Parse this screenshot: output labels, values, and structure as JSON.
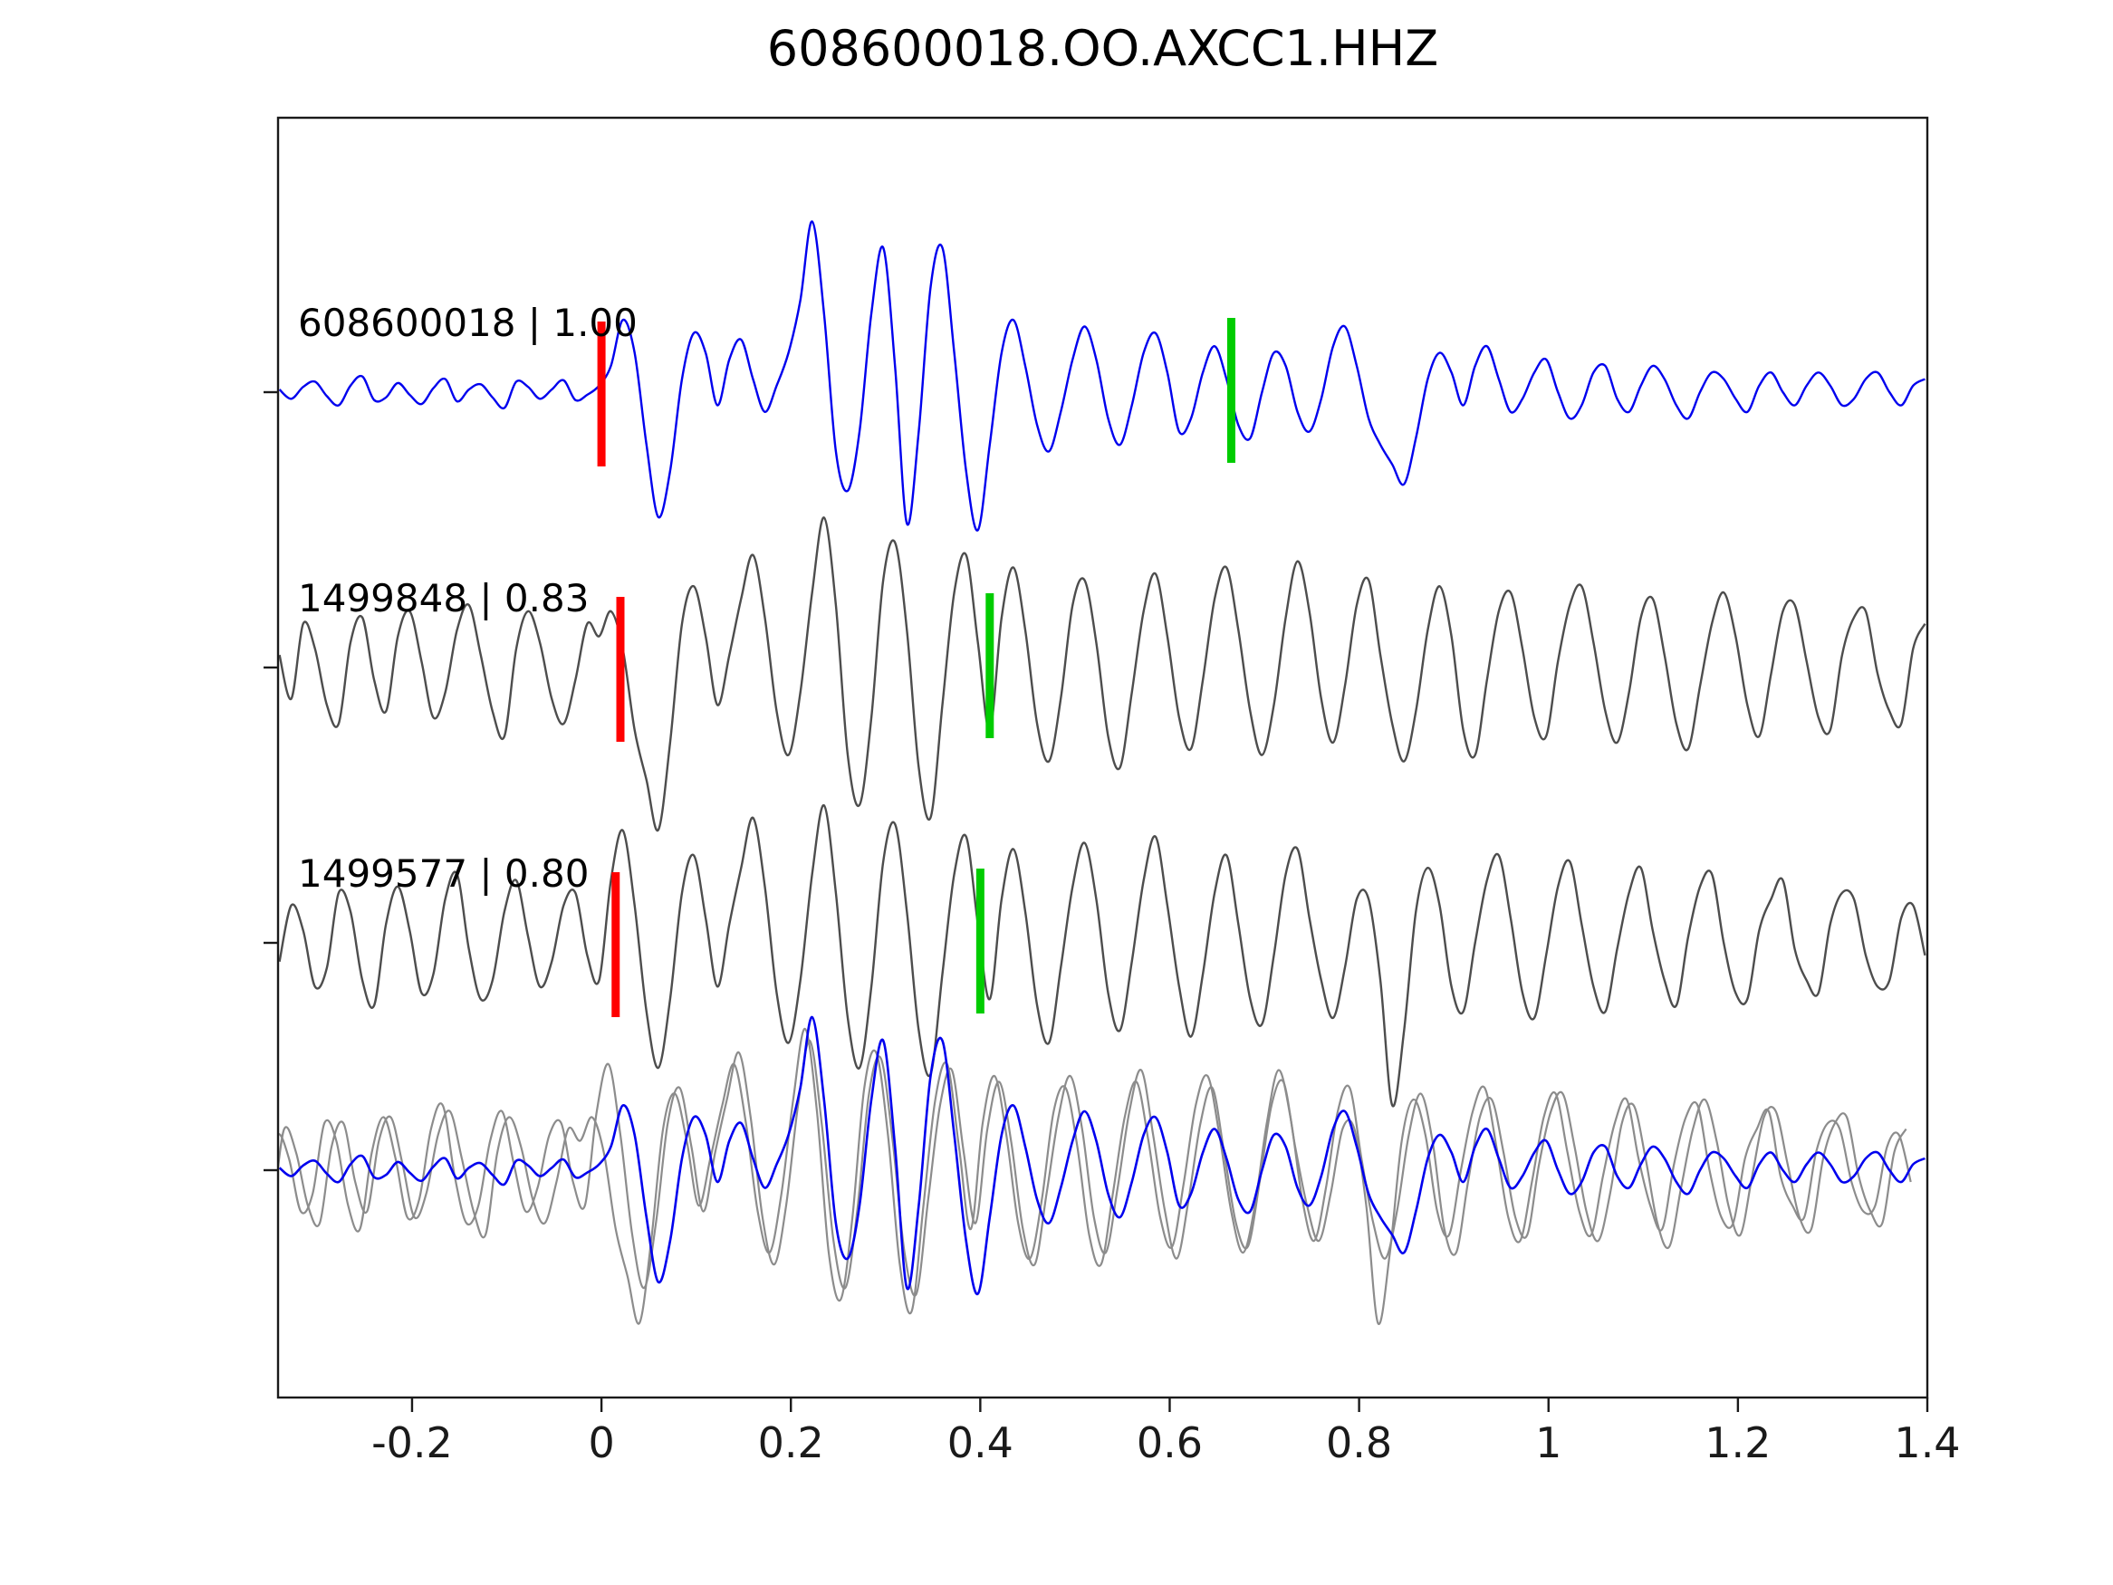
{
  "title": "608600018.OO.AXCC1.HHZ",
  "colors": {
    "trace_blue": "#0000ee",
    "trace_gray": "#4d4d4d",
    "overlay_gray": "#8c8c8c",
    "pick_red": "#ff0000",
    "pick_green": "#00cc00",
    "axis": "#1a1a1a",
    "label_text": "#000000"
  },
  "chart_data": {
    "type": "line",
    "title": "608600018.OO.AXCC1.HHZ",
    "xlabel": "",
    "ylabel": "",
    "xlim": [
      -0.3415,
      1.4
    ],
    "xticks": [
      -0.2,
      0,
      0.2,
      0.4,
      0.6,
      0.8,
      1,
      1.2,
      1.4
    ],
    "xtick_labels": [
      "-0.2",
      "0",
      "0.2",
      "0.4",
      "0.6",
      "0.8",
      "1",
      "1.2",
      "1.4"
    ],
    "grid": false,
    "legend": "none",
    "t0": -0.34,
    "dt": 0.0125,
    "series": [
      {
        "name": "608600018",
        "label": "608600018 | 1.00",
        "correlation": 1.0,
        "color": "blue",
        "row": 0,
        "red_pick": 0.0,
        "green_pick": 0.665,
        "values": [
          0.02,
          -0.05,
          0.04,
          0.08,
          -0.03,
          -0.1,
          0.05,
          0.12,
          -0.06,
          -0.04,
          0.07,
          -0.02,
          -0.09,
          0.03,
          0.1,
          -0.07,
          0.02,
          0.06,
          -0.04,
          -0.12,
          0.08,
          0.04,
          -0.05,
          0.02,
          0.09,
          -0.06,
          -0.02,
          0.05,
          0.2,
          0.55,
          0.3,
          -0.4,
          -0.95,
          -0.6,
          0.1,
          0.45,
          0.3,
          -0.1,
          0.25,
          0.4,
          0.1,
          -0.15,
          0.05,
          0.3,
          0.7,
          1.3,
          0.6,
          -0.45,
          -0.75,
          -0.3,
          0.6,
          1.1,
          0.2,
          -1.0,
          -0.3,
          0.8,
          1.1,
          0.3,
          -0.6,
          -1.05,
          -0.4,
          0.3,
          0.55,
          0.2,
          -0.25,
          -0.45,
          -0.15,
          0.25,
          0.5,
          0.25,
          -0.2,
          -0.4,
          -0.1,
          0.3,
          0.45,
          0.15,
          -0.3,
          -0.2,
          0.15,
          0.35,
          0.1,
          -0.25,
          -0.35,
          0.0,
          0.3,
          0.2,
          -0.15,
          -0.3,
          -0.05,
          0.35,
          0.5,
          0.2,
          -0.2,
          -0.4,
          -0.55,
          -0.7,
          -0.35,
          0.1,
          0.3,
          0.15,
          -0.1,
          0.2,
          0.35,
          0.1,
          -0.15,
          -0.05,
          0.15,
          0.25,
          0.0,
          -0.2,
          -0.1,
          0.15,
          0.2,
          -0.05,
          -0.15,
          0.05,
          0.2,
          0.1,
          -0.1,
          -0.2,
          0.0,
          0.15,
          0.1,
          -0.05,
          -0.15,
          0.05,
          0.15,
          0.0,
          -0.1,
          0.05,
          0.15,
          0.05,
          -0.1,
          -0.05,
          0.1,
          0.15,
          0.0,
          -0.1,
          0.05,
          0.1
        ]
      },
      {
        "name": "1499848",
        "label": "1499848 | 0.83",
        "correlation": 0.83,
        "color": "gray",
        "row": 1,
        "red_pick": 0.02,
        "green_pick": 0.41,
        "values": [
          0.1,
          -0.25,
          0.35,
          0.15,
          -0.3,
          -0.45,
          0.2,
          0.4,
          -0.1,
          -0.35,
          0.25,
          0.45,
          0.05,
          -0.4,
          -0.2,
          0.3,
          0.5,
          0.1,
          -0.35,
          -0.55,
          0.15,
          0.45,
          0.2,
          -0.25,
          -0.45,
          -0.1,
          0.35,
          0.25,
          0.45,
          0.15,
          -0.5,
          -0.9,
          -1.3,
          -0.6,
          0.35,
          0.65,
          0.25,
          -0.3,
          0.1,
          0.55,
          0.9,
          0.4,
          -0.35,
          -0.7,
          -0.2,
          0.6,
          1.2,
          0.5,
          -0.7,
          -1.1,
          -0.4,
          0.7,
          1.0,
          0.3,
          -0.8,
          -1.2,
          -0.3,
          0.6,
          0.9,
          0.2,
          -0.5,
          0.4,
          0.8,
          0.3,
          -0.45,
          -0.75,
          -0.25,
          0.5,
          0.7,
          0.2,
          -0.55,
          -0.8,
          -0.2,
          0.45,
          0.75,
          0.25,
          -0.4,
          -0.65,
          -0.1,
          0.55,
          0.8,
          0.3,
          -0.35,
          -0.7,
          -0.3,
          0.4,
          0.85,
          0.45,
          -0.25,
          -0.6,
          -0.15,
          0.5,
          0.7,
          0.1,
          -0.45,
          -0.75,
          -0.35,
          0.3,
          0.65,
          0.25,
          -0.5,
          -0.7,
          -0.1,
          0.45,
          0.6,
          0.15,
          -0.4,
          -0.55,
          0.05,
          0.5,
          0.65,
          0.2,
          -0.35,
          -0.6,
          -0.2,
          0.4,
          0.55,
          0.1,
          -0.45,
          -0.65,
          -0.15,
          0.35,
          0.6,
          0.25,
          -0.3,
          -0.55,
          -0.05,
          0.45,
          0.5,
          0.05,
          -0.4,
          -0.5,
          0.1,
          0.4,
          0.45,
          -0.05,
          -0.35,
          -0.45,
          0.15,
          0.35
        ]
      },
      {
        "name": "1499577",
        "label": "1499577 | 0.80",
        "correlation": 0.8,
        "color": "gray",
        "row": 2,
        "red_pick": 0.015,
        "green_pick": 0.4,
        "values": [
          -0.15,
          0.3,
          0.1,
          -0.35,
          -0.2,
          0.4,
          0.25,
          -0.3,
          -0.5,
          0.15,
          0.45,
          0.1,
          -0.4,
          -0.25,
          0.35,
          0.55,
          -0.05,
          -0.45,
          -0.3,
          0.25,
          0.5,
          0.05,
          -0.35,
          -0.15,
          0.3,
          0.4,
          -0.1,
          -0.3,
          0.5,
          0.9,
          0.3,
          -0.55,
          -1.0,
          -0.45,
          0.4,
          0.7,
          0.2,
          -0.35,
          0.15,
          0.6,
          1.0,
          0.45,
          -0.4,
          -0.8,
          -0.3,
          0.55,
          1.1,
          0.4,
          -0.6,
          -1.0,
          -0.35,
          0.65,
          0.95,
          0.25,
          -0.7,
          -1.05,
          -0.25,
          0.55,
          0.85,
          0.15,
          -0.45,
          0.35,
          0.75,
          0.25,
          -0.5,
          -0.8,
          -0.2,
          0.45,
          0.8,
          0.35,
          -0.4,
          -0.7,
          -0.15,
          0.5,
          0.85,
          0.3,
          -0.35,
          -0.75,
          -0.25,
          0.4,
          0.7,
          0.15,
          -0.45,
          -0.65,
          -0.1,
          0.55,
          0.75,
          0.2,
          -0.3,
          -0.6,
          -0.2,
          0.35,
          0.35,
          -0.3,
          -1.3,
          -0.7,
          0.25,
          0.6,
          0.3,
          -0.35,
          -0.55,
          0.0,
          0.5,
          0.7,
          0.2,
          -0.4,
          -0.6,
          -0.1,
          0.45,
          0.65,
          0.15,
          -0.35,
          -0.55,
          -0.05,
          0.4,
          0.6,
          0.1,
          -0.3,
          -0.5,
          0.05,
          0.45,
          0.55,
          0.0,
          -0.4,
          -0.45,
          0.1,
          0.35,
          0.5,
          -0.05,
          -0.3,
          -0.4,
          0.15,
          0.4,
          0.35,
          -0.1,
          -0.35,
          -0.3,
          0.2,
          0.3,
          -0.1
        ]
      }
    ],
    "overlay_row": {
      "description": "aligned overlay of candidate traces (gray) with template trace (blue)",
      "members": [
        "1499848",
        "1499577",
        "608600018"
      ],
      "align_shifts": [
        -0.02,
        -0.015,
        0
      ]
    }
  }
}
